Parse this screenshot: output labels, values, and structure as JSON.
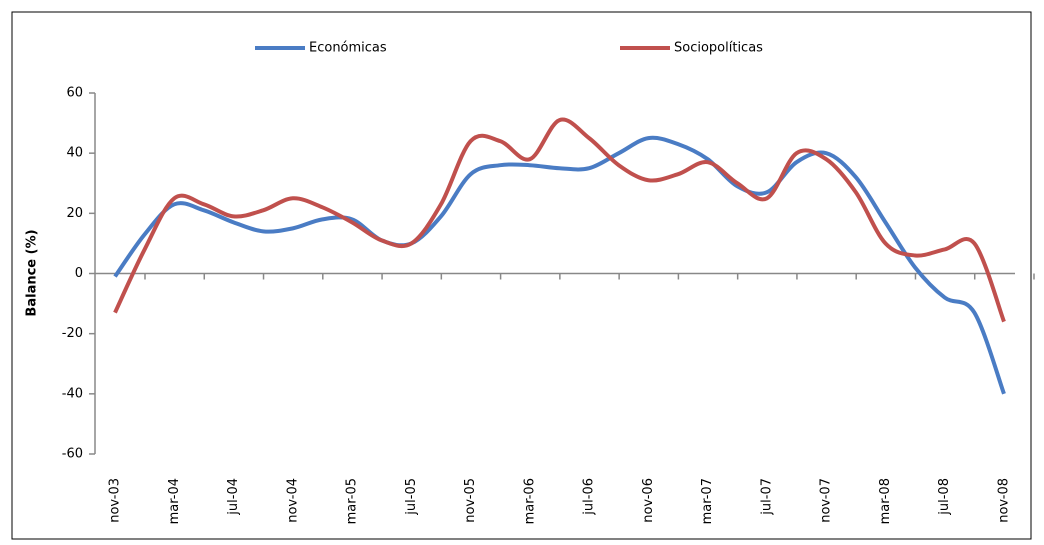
{
  "chart_data": {
    "type": "line",
    "y_label": "Balance (%)",
    "categories": [
      "nov-03",
      null,
      "mar-04",
      null,
      "jul-04",
      null,
      "nov-04",
      null,
      "mar-05",
      null,
      "jul-05",
      null,
      "nov-05",
      null,
      "mar-06",
      null,
      "jul-06",
      null,
      "nov-06",
      null,
      "mar-07",
      null,
      "jul-07",
      null,
      "nov-07",
      null,
      "mar-08",
      null,
      "jul-08",
      null,
      "nov-08"
    ],
    "series": [
      {
        "name": "Económicas",
        "color": "#4a7cc4",
        "values": [
          -1,
          13,
          23,
          21,
          17,
          14,
          15,
          18,
          18,
          11,
          10,
          19,
          33,
          36,
          36,
          35,
          35,
          40,
          45,
          43,
          38,
          29,
          27,
          37,
          40,
          32,
          17,
          2,
          -8,
          -13,
          -40
        ]
      },
      {
        "name": "Sociopolíticas",
        "color": "#c0504d",
        "values": [
          -13,
          8,
          25,
          23,
          19,
          21,
          25,
          22,
          17,
          11,
          10,
          23,
          44,
          44,
          38,
          51,
          45,
          36,
          31,
          33,
          37,
          30,
          25,
          40,
          38,
          27,
          10,
          6,
          8,
          10,
          -16
        ]
      }
    ],
    "ylim": [
      -60,
      60
    ],
    "yticks": [
      -60,
      -40,
      -20,
      0,
      20,
      40,
      60
    ],
    "legend": "top"
  }
}
